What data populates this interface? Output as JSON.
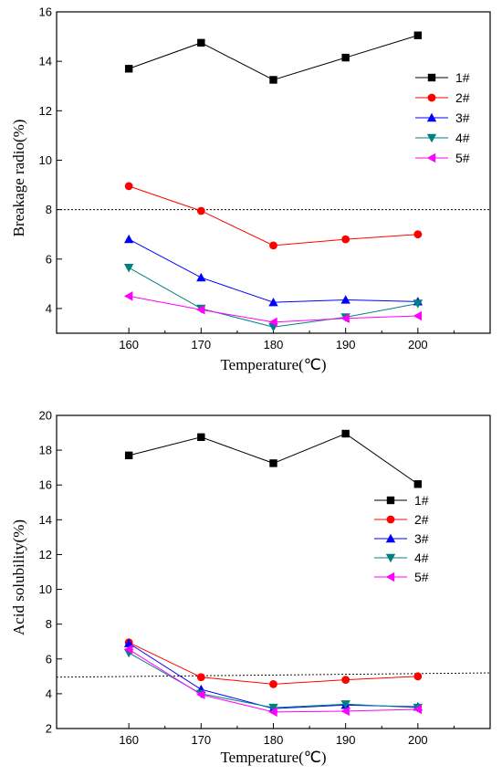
{
  "colors": {
    "series_1": "#000000",
    "series_2": "#ff0000",
    "series_3": "#0000ff",
    "series_4": "#008080",
    "series_5": "#ff00ff"
  },
  "markers": {
    "1#": "square",
    "2#": "circle",
    "3#": "triangle-up",
    "4#": "triangle-down",
    "5#": "triangle-left"
  },
  "chart_data": [
    {
      "type": "line",
      "xlabel": "Temperature(℃)",
      "ylabel": "Breakage radio(%)",
      "x": [
        160,
        170,
        180,
        190,
        200
      ],
      "xlim": [
        150,
        210
      ],
      "ylim": [
        3,
        16
      ],
      "xticks": [
        160,
        170,
        180,
        190,
        200
      ],
      "yticks": [
        4,
        6,
        8,
        10,
        12,
        14,
        16
      ],
      "reference_line": {
        "style": "dotted",
        "y": [
          8.0,
          8.0
        ]
      },
      "legend": {
        "placement": "right"
      },
      "series": [
        {
          "name": "1#",
          "values": [
            13.7,
            14.75,
            13.25,
            14.15,
            15.05
          ]
        },
        {
          "name": "2#",
          "values": [
            8.95,
            7.95,
            6.55,
            6.8,
            7.0
          ]
        },
        {
          "name": "3#",
          "values": [
            6.8,
            5.25,
            4.25,
            4.35,
            4.28
          ]
        },
        {
          "name": "4#",
          "values": [
            5.65,
            4.0,
            3.25,
            3.65,
            4.2
          ]
        },
        {
          "name": "5#",
          "values": [
            4.5,
            3.95,
            3.45,
            3.6,
            3.7
          ]
        }
      ]
    },
    {
      "type": "line",
      "xlabel": "Temperature(℃)",
      "ylabel": "Acid solubility(%)",
      "x": [
        160,
        170,
        180,
        190,
        200
      ],
      "xlim": [
        150,
        210
      ],
      "ylim": [
        2,
        20
      ],
      "xticks": [
        160,
        170,
        180,
        190,
        200
      ],
      "yticks": [
        2,
        4,
        6,
        8,
        10,
        12,
        14,
        16,
        18,
        20
      ],
      "reference_line": {
        "style": "dotted",
        "y": [
          4.95,
          5.2
        ]
      },
      "legend": {
        "placement": "right"
      },
      "series": [
        {
          "name": "1#",
          "values": [
            17.7,
            18.75,
            17.25,
            18.95,
            16.05
          ]
        },
        {
          "name": "2#",
          "values": [
            6.95,
            4.95,
            4.55,
            4.8,
            5.0
          ]
        },
        {
          "name": "3#",
          "values": [
            6.9,
            4.25,
            3.15,
            3.35,
            3.25
          ]
        },
        {
          "name": "4#",
          "values": [
            6.35,
            4.0,
            3.2,
            3.4,
            3.2
          ]
        },
        {
          "name": "5#",
          "values": [
            6.55,
            3.95,
            2.95,
            3.0,
            3.1
          ]
        }
      ]
    }
  ]
}
